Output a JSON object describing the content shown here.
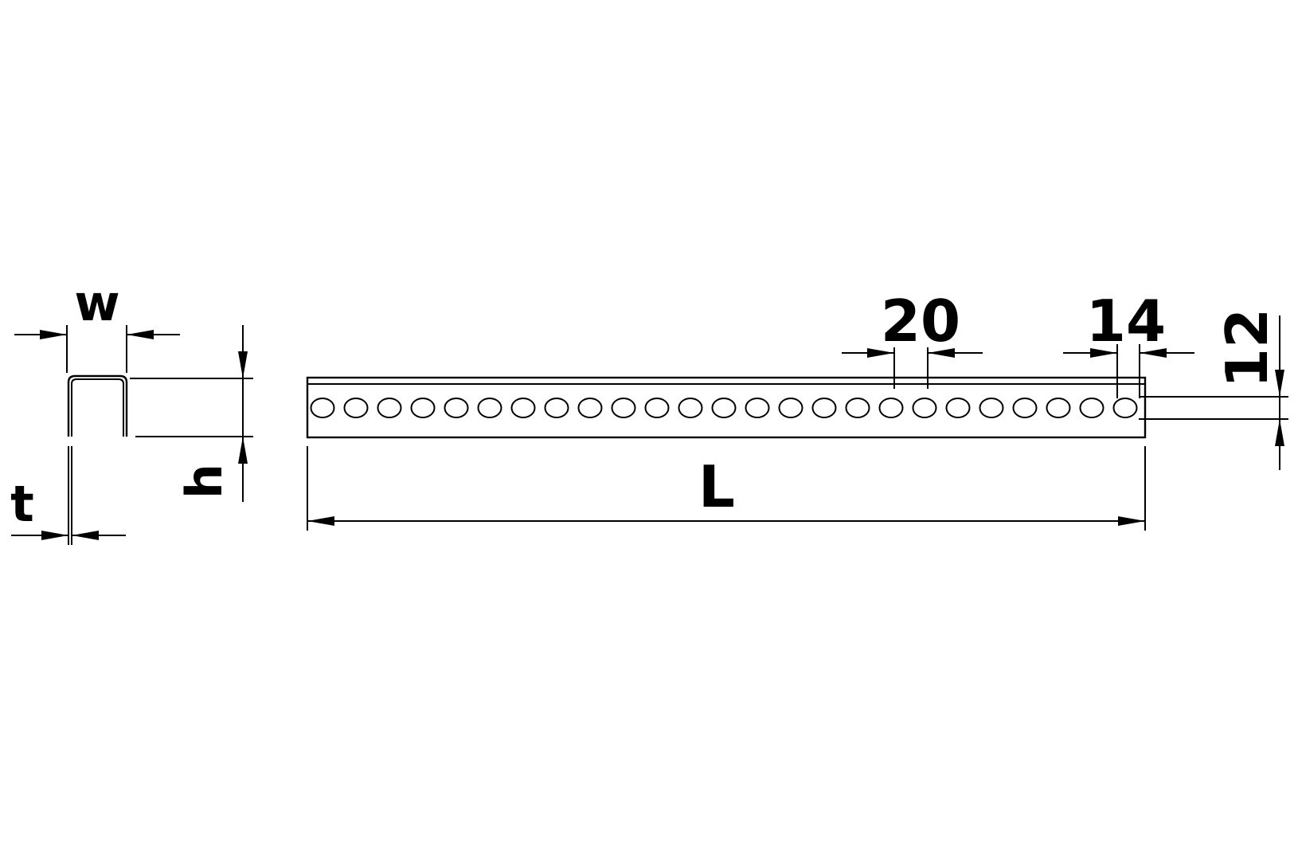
{
  "labels": {
    "width": "w",
    "height": "h",
    "thickness": "t",
    "length": "L",
    "hole_pitch": "20",
    "end_offset": "14",
    "hole_height": "12"
  },
  "strip": {
    "hole_count": 25
  },
  "colors": {
    "line": "#000000",
    "background": "#ffffff"
  }
}
